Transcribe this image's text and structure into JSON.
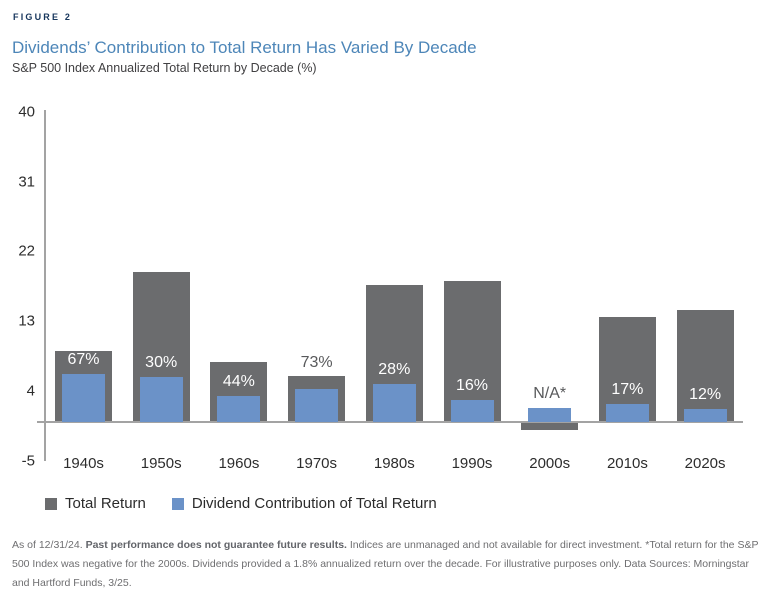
{
  "header": {
    "figure_label": "FIGURE 2",
    "title": "Dividends’ Contribution to Total Return Has Varied By Decade",
    "subtitle": "S&P 500 Index Annualized Total Return by Decade (%)"
  },
  "chart_data": {
    "type": "bar",
    "title": "Dividends’ Contribution to Total Return Has Varied By Decade",
    "subtitle": "S&P 500 Index Annualized Total Return by Decade (%)",
    "categories": [
      "1940s",
      "1950s",
      "1960s",
      "1970s",
      "1980s",
      "1990s",
      "2000s",
      "2010s",
      "2020s"
    ],
    "series": [
      {
        "name": "Total Return",
        "values": [
          9.2,
          19.4,
          7.8,
          5.9,
          17.6,
          18.2,
          -0.9,
          13.6,
          14.5
        ]
      },
      {
        "name": "Dividend Contribution of Total Return",
        "values": [
          6.2,
          5.8,
          3.4,
          4.3,
          4.9,
          2.9,
          1.8,
          2.3,
          1.7
        ]
      }
    ],
    "bar_labels": [
      {
        "text": "67%",
        "color": "white",
        "anchor": "dividend"
      },
      {
        "text": "30%",
        "color": "white",
        "anchor": "dividend"
      },
      {
        "text": "44%",
        "color": "white",
        "anchor": "dividend"
      },
      {
        "text": "73%",
        "color": "gray",
        "anchor": "total"
      },
      {
        "text": "28%",
        "color": "white",
        "anchor": "dividend"
      },
      {
        "text": "16%",
        "color": "white",
        "anchor": "dividend"
      },
      {
        "text": "N/A*",
        "color": "gray",
        "anchor": "dividend"
      },
      {
        "text": "17%",
        "color": "white",
        "anchor": "dividend"
      },
      {
        "text": "12%",
        "color": "white",
        "anchor": "dividend"
      }
    ],
    "yticks": [
      40,
      31,
      22,
      13,
      4,
      -5
    ],
    "ylim": [
      -5,
      40
    ],
    "xlabel": "",
    "ylabel": "",
    "grid": false,
    "legend_position": "bottom"
  },
  "legend": {
    "items": [
      {
        "label": "Total Return",
        "color": "#6b6c6e"
      },
      {
        "label": "Dividend Contribution of Total Return",
        "color": "#6b92c8"
      }
    ]
  },
  "footnote": {
    "as_of": "As of 12/31/24. ",
    "bold": "Past performance does not guarantee future results.",
    "rest": " Indices are unmanaged and not available for direct investment. *Total return for the S&P 500 Index was negative for the 2000s. Dividends provided a 1.8% annualized return over the decade. For illustrative purposes only. Data Sources: Morningstar and Hartford Funds, 3/25."
  },
  "colors": {
    "total_bar": "#6b6c6e",
    "dividend_bar": "#6b92c8",
    "label_white": "#ffffff",
    "label_gray": "#58595b",
    "axis_line": "#a3a3a3",
    "tick_text": "#2d2d2d",
    "title_blue": "#4d86b8",
    "figure_navy": "#17365c"
  }
}
